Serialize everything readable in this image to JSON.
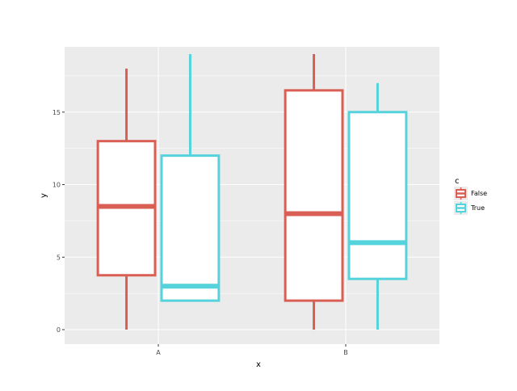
{
  "chart_data": {
    "type": "boxplot",
    "xlabel": "x",
    "ylabel": "y",
    "categories": [
      "A",
      "B"
    ],
    "ylim": [
      -1,
      19.5
    ],
    "yticks": [
      0,
      5,
      10,
      15
    ],
    "grid": true,
    "legend": {
      "title": "c",
      "position": "right"
    },
    "series": [
      {
        "name": "False",
        "color": "#d95f55",
        "boxes": [
          {
            "category": "A",
            "min": 0,
            "q1": 3.75,
            "median": 8.5,
            "q3": 13,
            "max": 18
          },
          {
            "category": "B",
            "min": 0,
            "q1": 2,
            "median": 8,
            "q3": 16.5,
            "max": 19
          }
        ]
      },
      {
        "name": "True",
        "color": "#55d3dc",
        "boxes": [
          {
            "category": "A",
            "min": 2,
            "q1": 2,
            "median": 3,
            "q3": 12,
            "max": 19
          },
          {
            "category": "B",
            "min": 0,
            "q1": 3.5,
            "median": 6,
            "q3": 15,
            "max": 17
          }
        ]
      }
    ]
  }
}
